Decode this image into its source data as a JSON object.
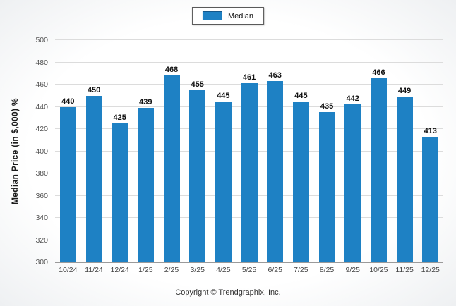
{
  "legend": {
    "label": "Median",
    "color": "#1e81c4"
  },
  "footer": "Copyright © Trendgraphix, Inc.",
  "chart_data": {
    "type": "bar",
    "title": "",
    "categories": [
      "10/24",
      "11/24",
      "12/24",
      "1/25",
      "2/25",
      "3/25",
      "4/25",
      "5/25",
      "6/25",
      "7/25",
      "8/25",
      "9/25",
      "10/25",
      "11/25",
      "12/25"
    ],
    "series": [
      {
        "name": "Median",
        "values": [
          440,
          450,
          425,
          439,
          468,
          455,
          445,
          461,
          463,
          445,
          435,
          442,
          466,
          449,
          413
        ]
      }
    ],
    "xlabel": "",
    "ylabel": "Median Price (in $,000) %",
    "ylim": [
      300,
      500
    ],
    "ytick_step": 20,
    "bar_color": "#1e81c4",
    "grid": true,
    "legend_position": "top-center",
    "value_labels": true
  }
}
